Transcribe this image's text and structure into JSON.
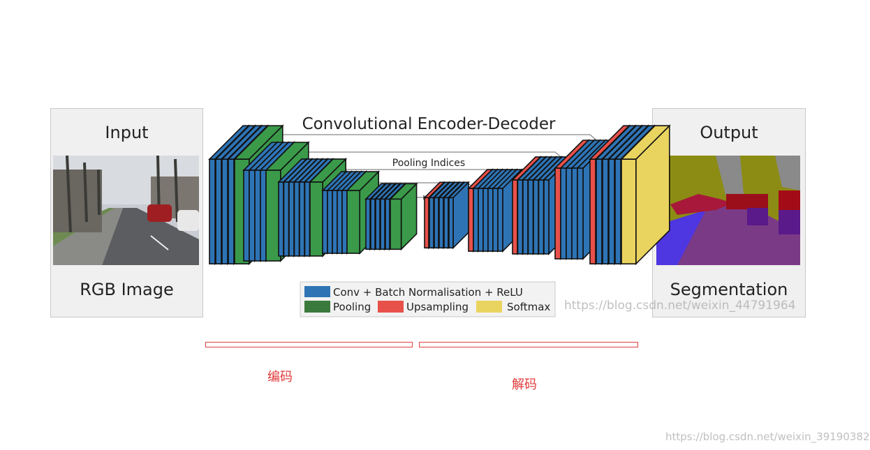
{
  "input_panel": {
    "title": "Input",
    "caption": "RGB Image"
  },
  "output_panel": {
    "title": "Output",
    "caption": "Segmentation"
  },
  "diagram": {
    "title": "Convolutional Encoder-Decoder",
    "indices_label": "Pooling Indices"
  },
  "legend": {
    "conv_label": "Conv + Batch Normalisation + ReLU",
    "pool_label": "Pooling",
    "upsample_label": "Upsampling",
    "softmax_label": "Softmax"
  },
  "colors": {
    "conv": "#2e74b5",
    "pool": "#3a9a4a",
    "upsample": "#e8514a",
    "softmax": "#ead460"
  },
  "annotations": {
    "encoder_label": "编码",
    "decoder_label": "解码"
  },
  "watermarks": {
    "image_watermark": "https://blog.csdn.net/weixin_44791964",
    "page_watermark": "https://blog.csdn.net/weixin_39190382"
  }
}
